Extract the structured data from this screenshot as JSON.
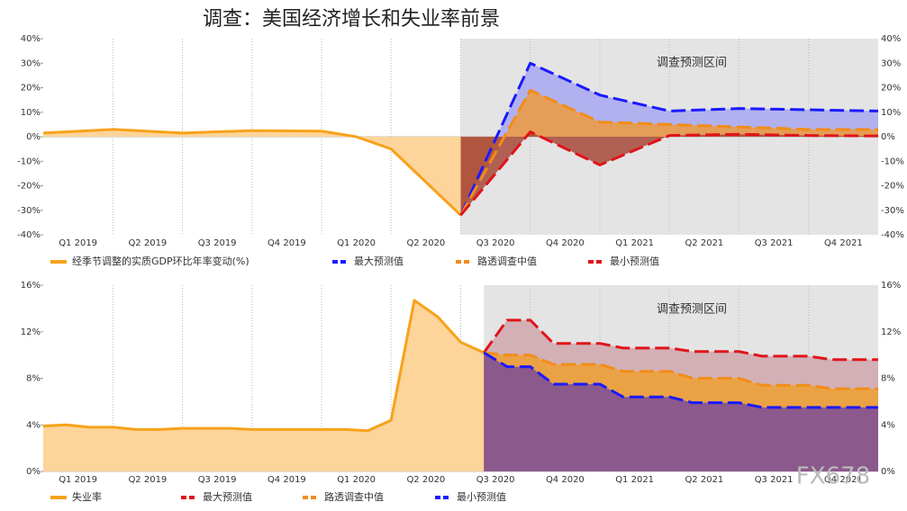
{
  "title": "调查：美国经济增长和失业率前景",
  "watermark": "FX678",
  "chart_data": [
    {
      "type": "line",
      "xlim": [
        0,
        12
      ],
      "xticks": [
        {
          "value": 0.5,
          "label": "Q1 2019"
        },
        {
          "value": 1.5,
          "label": "Q2 2019"
        },
        {
          "value": 2.5,
          "label": "Q3 2019"
        },
        {
          "value": 3.5,
          "label": "Q4 2019"
        },
        {
          "value": 4.5,
          "label": "Q1 2020"
        },
        {
          "value": 5.5,
          "label": "Q2 2020"
        },
        {
          "value": 6.5,
          "label": "Q3 2020"
        },
        {
          "value": 7.5,
          "label": "Q4 2020"
        },
        {
          "value": 8.5,
          "label": "Q1 2021"
        },
        {
          "value": 9.5,
          "label": "Q2 2021"
        },
        {
          "value": 10.5,
          "label": "Q3 2021"
        },
        {
          "value": 11.5,
          "label": "Q4 2021"
        }
      ],
      "ylim": [
        -40,
        40
      ],
      "yticks": [
        {
          "value": -40,
          "label": "-40%"
        },
        {
          "value": -30,
          "label": "-30%"
        },
        {
          "value": -20,
          "label": "-20%"
        },
        {
          "value": -10,
          "label": "-10%"
        },
        {
          "value": 0,
          "label": "0%"
        },
        {
          "value": 10,
          "label": "10%"
        },
        {
          "value": 20,
          "label": "20%"
        },
        {
          "value": 30,
          "label": "30%"
        },
        {
          "value": 40,
          "label": "40%"
        }
      ],
      "shaded_region": {
        "x": [
          6,
          12
        ],
        "label": "调查预测区间"
      },
      "series": [
        {
          "name": "经季节调整的实质GDP环比年率变动(%)",
          "color": "#f7a21b",
          "fill": "#fdd49a",
          "dash": false,
          "x": [
            0,
            1,
            2,
            3,
            4,
            4.5,
            5,
            6
          ],
          "values": [
            1.5,
            3,
            1.5,
            2.5,
            2.3,
            0,
            -5,
            -32
          ]
        },
        {
          "name": "最大预测值",
          "color": "#1a1aff",
          "fill": "#a8a8f2",
          "dash": true,
          "x": [
            6,
            7,
            8,
            9,
            10,
            11,
            12
          ],
          "values": [
            -32,
            30,
            17,
            10.5,
            11.5,
            11,
            10.5
          ]
        },
        {
          "name": "路透调查中值",
          "color": "#f28c1a",
          "fill": "#ee9a3c",
          "dash": true,
          "x": [
            6,
            7,
            8,
            9,
            10,
            11,
            12
          ],
          "values": [
            -32,
            19,
            6,
            5,
            4,
            3,
            3
          ]
        },
        {
          "name": "最小预测值",
          "color": "#e0141a",
          "fill": "#a84a3a",
          "dash": true,
          "x": [
            6,
            7,
            8,
            9,
            10,
            11,
            12
          ],
          "values": [
            -32,
            2,
            -11.5,
            0.5,
            1,
            0.5,
            0.3
          ]
        }
      ]
    },
    {
      "type": "line",
      "xlim": [
        0,
        36
      ],
      "xticks": [
        {
          "value": 1.5,
          "label": "Q1 2019"
        },
        {
          "value": 4.5,
          "label": "Q2 2019"
        },
        {
          "value": 7.5,
          "label": "Q3 2019"
        },
        {
          "value": 10.5,
          "label": "Q4 2019"
        },
        {
          "value": 13.5,
          "label": "Q1 2020"
        },
        {
          "value": 16.5,
          "label": "Q2 2020"
        },
        {
          "value": 19.5,
          "label": "Q3 2020"
        },
        {
          "value": 22.5,
          "label": "Q4 2020"
        },
        {
          "value": 25.5,
          "label": "Q1 2021"
        },
        {
          "value": 28.5,
          "label": "Q2 2021"
        },
        {
          "value": 31.5,
          "label": "Q3 2021"
        },
        {
          "value": 34.5,
          "label": "Q4 2021"
        }
      ],
      "ylim": [
        0,
        16
      ],
      "yticks": [
        {
          "value": 0,
          "label": "0%"
        },
        {
          "value": 4,
          "label": "4%"
        },
        {
          "value": 8,
          "label": "8%"
        },
        {
          "value": 12,
          "label": "12%"
        },
        {
          "value": 16,
          "label": "16%"
        }
      ],
      "shaded_region": {
        "x": [
          19,
          36
        ],
        "label": "调查预测区间"
      },
      "series": [
        {
          "name": "失业率",
          "color": "#f7a21b",
          "fill": "#fdd49a",
          "dash": false,
          "x": [
            0,
            1,
            2,
            3,
            4,
            5,
            6,
            7,
            8,
            9,
            10,
            11,
            12,
            13,
            14,
            15,
            16,
            17,
            18,
            19
          ],
          "values": [
            3.9,
            4.0,
            3.8,
            3.8,
            3.6,
            3.6,
            3.7,
            3.7,
            3.7,
            3.6,
            3.6,
            3.6,
            3.6,
            3.6,
            3.5,
            4.4,
            14.7,
            13.3,
            11.1,
            10.2
          ]
        },
        {
          "name": "最大预测值",
          "color": "#e0141a",
          "fill": "#cfa7ae",
          "dash": true,
          "x": [
            19,
            20,
            21,
            22,
            23,
            24,
            25,
            26,
            27,
            28,
            29,
            30,
            31,
            32,
            33,
            34,
            35,
            36
          ],
          "values": [
            10.2,
            13,
            13,
            11,
            11,
            11,
            10.6,
            10.6,
            10.6,
            10.3,
            10.3,
            10.3,
            9.9,
            9.9,
            9.9,
            9.6,
            9.6,
            9.6
          ]
        },
        {
          "name": "路透调查中值",
          "color": "#f28c1a",
          "fill": "#f0a030",
          "dash": true,
          "x": [
            19,
            20,
            21,
            22,
            23,
            24,
            25,
            26,
            27,
            28,
            29,
            30,
            31,
            32,
            33,
            34,
            35,
            36
          ],
          "values": [
            10.2,
            10,
            10,
            9.2,
            9.2,
            9.2,
            8.6,
            8.6,
            8.6,
            8.0,
            8.0,
            8.0,
            7.4,
            7.4,
            7.4,
            7.1,
            7.1,
            7.1
          ]
        },
        {
          "name": "最小预测值",
          "color": "#1a1aff",
          "fill": "#7b4c9a",
          "dash": true,
          "x": [
            19,
            20,
            21,
            22,
            23,
            24,
            25,
            26,
            27,
            28,
            29,
            30,
            31,
            32,
            33,
            34,
            35,
            36
          ],
          "values": [
            10.2,
            9,
            9,
            7.5,
            7.5,
            7.5,
            6.4,
            6.4,
            6.4,
            5.9,
            5.9,
            5.9,
            5.5,
            5.5,
            5.5,
            5.5,
            5.5,
            5.5
          ]
        }
      ]
    }
  ]
}
